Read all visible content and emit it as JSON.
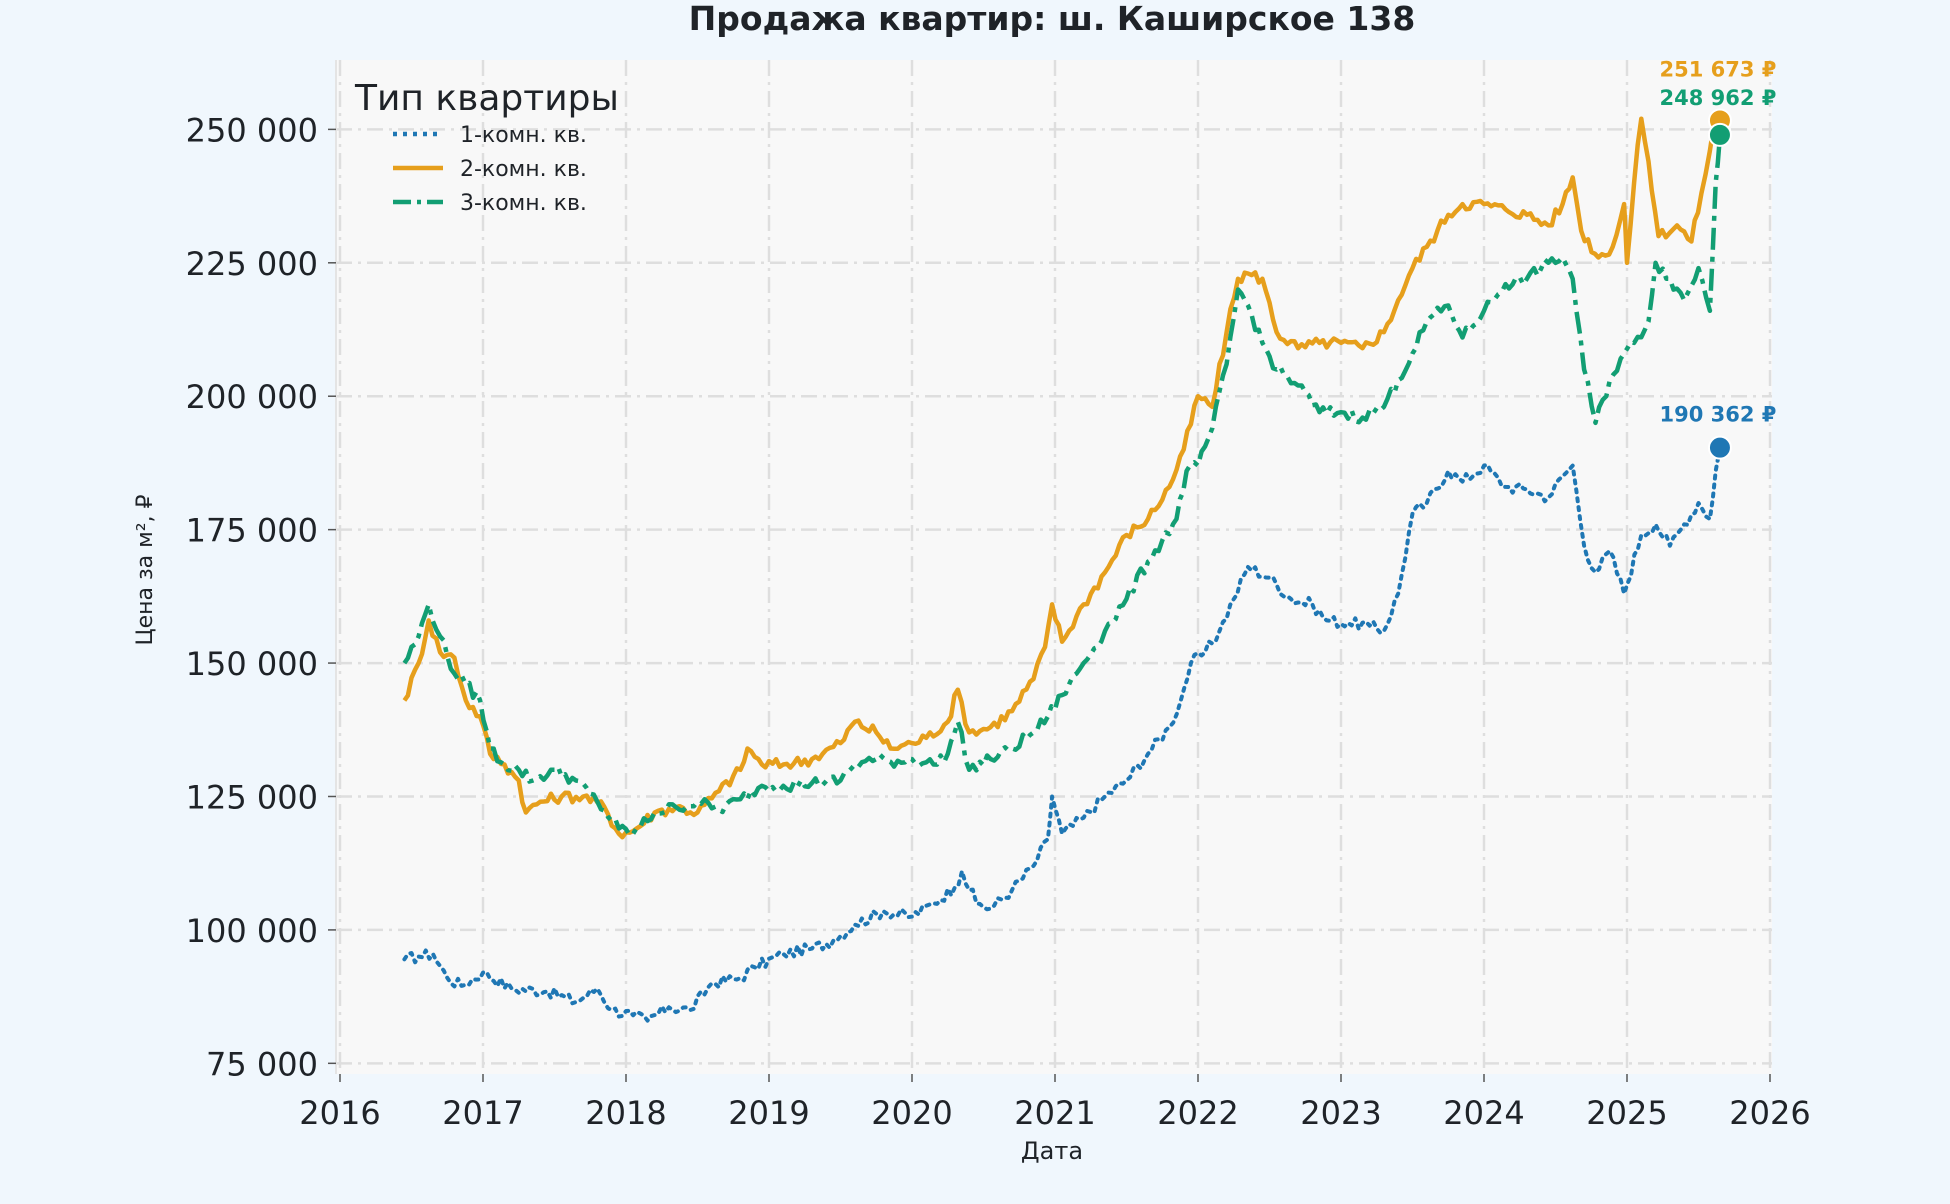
{
  "chart_data": {
    "type": "line",
    "title": "Продажа квартир: ш. Каширское 138",
    "xlabel": "Дата",
    "ylabel": "Цена за м², ₽",
    "legend_title": "Тип квартиры",
    "legend_position": "top-left",
    "grid": true,
    "x_ticks": [
      "2016",
      "2017",
      "2018",
      "2019",
      "2020",
      "2021",
      "2022",
      "2023",
      "2024",
      "2025",
      "2026"
    ],
    "y_ticks": [
      "75 000",
      "100 000",
      "125 000",
      "150 000",
      "175 000",
      "200 000",
      "225 000",
      "250 000"
    ],
    "xlim": [
      2016.0,
      2026.0
    ],
    "ylim": [
      73000,
      263000
    ],
    "series": [
      {
        "name": "1-комн. кв.",
        "color": "#1f77b4",
        "dash": "dotted",
        "end_label": "190 362 ₽",
        "end_value": 190362,
        "points": [
          [
            2016.45,
            94500
          ],
          [
            2016.55,
            95000
          ],
          [
            2016.65,
            95500
          ],
          [
            2016.75,
            91000
          ],
          [
            2016.85,
            89500
          ],
          [
            2017.0,
            92000
          ],
          [
            2017.2,
            89000
          ],
          [
            2017.45,
            88500
          ],
          [
            2017.65,
            86500
          ],
          [
            2017.8,
            89000
          ],
          [
            2017.9,
            85000
          ],
          [
            2018.05,
            84000
          ],
          [
            2018.15,
            83000
          ],
          [
            2018.3,
            85500
          ],
          [
            2018.45,
            85000
          ],
          [
            2018.6,
            90000
          ],
          [
            2018.8,
            91000
          ],
          [
            2018.9,
            93000
          ],
          [
            2019.1,
            95500
          ],
          [
            2019.3,
            96500
          ],
          [
            2019.45,
            98000
          ],
          [
            2019.6,
            101000
          ],
          [
            2019.8,
            103500
          ],
          [
            2020.0,
            102500
          ],
          [
            2020.15,
            105000
          ],
          [
            2020.3,
            108000
          ],
          [
            2020.35,
            111000
          ],
          [
            2020.45,
            105000
          ],
          [
            2020.55,
            104000
          ],
          [
            2020.7,
            107500
          ],
          [
            2020.85,
            112000
          ],
          [
            2020.95,
            117000
          ],
          [
            2020.98,
            125000
          ],
          [
            2021.05,
            118000
          ],
          [
            2021.2,
            121000
          ],
          [
            2021.35,
            125000
          ],
          [
            2021.5,
            128000
          ],
          [
            2021.65,
            133000
          ],
          [
            2021.8,
            138000
          ],
          [
            2021.88,
            143000
          ],
          [
            2021.95,
            150000
          ],
          [
            2022.05,
            152000
          ],
          [
            2022.15,
            156000
          ],
          [
            2022.25,
            162000
          ],
          [
            2022.35,
            168000
          ],
          [
            2022.5,
            166000
          ],
          [
            2022.65,
            162000
          ],
          [
            2022.8,
            161000
          ],
          [
            2022.9,
            158000
          ],
          [
            2023.05,
            157500
          ],
          [
            2023.2,
            157000
          ],
          [
            2023.3,
            156000
          ],
          [
            2023.4,
            163000
          ],
          [
            2023.5,
            178000
          ],
          [
            2023.6,
            180000
          ],
          [
            2023.75,
            186000
          ],
          [
            2023.85,
            184000
          ],
          [
            2024.0,
            187000
          ],
          [
            2024.15,
            183000
          ],
          [
            2024.3,
            182500
          ],
          [
            2024.45,
            181000
          ],
          [
            2024.55,
            185000
          ],
          [
            2024.62,
            187000
          ],
          [
            2024.7,
            172000
          ],
          [
            2024.78,
            167000
          ],
          [
            2024.88,
            171000
          ],
          [
            2024.98,
            163000
          ],
          [
            2025.1,
            174000
          ],
          [
            2025.2,
            176000
          ],
          [
            2025.3,
            172000
          ],
          [
            2025.4,
            176000
          ],
          [
            2025.5,
            180000
          ],
          [
            2025.58,
            177000
          ],
          [
            2025.62,
            186000
          ],
          [
            2025.65,
            190362
          ]
        ]
      },
      {
        "name": "2-комн. кв.",
        "color": "#e69f1c",
        "dash": "solid",
        "end_label": "251 673 ₽",
        "end_value": 251673,
        "points": [
          [
            2016.45,
            143000
          ],
          [
            2016.55,
            150000
          ],
          [
            2016.62,
            158000
          ],
          [
            2016.7,
            152000
          ],
          [
            2016.8,
            151000
          ],
          [
            2016.88,
            143000
          ],
          [
            2016.98,
            140000
          ],
          [
            2017.05,
            133000
          ],
          [
            2017.15,
            131000
          ],
          [
            2017.25,
            128000
          ],
          [
            2017.3,
            122000
          ],
          [
            2017.4,
            124000
          ],
          [
            2017.55,
            125000
          ],
          [
            2017.7,
            125000
          ],
          [
            2017.85,
            123000
          ],
          [
            2017.95,
            118000
          ],
          [
            2018.05,
            118500
          ],
          [
            2018.2,
            122000
          ],
          [
            2018.35,
            123000
          ],
          [
            2018.5,
            122000
          ],
          [
            2018.65,
            126000
          ],
          [
            2018.8,
            130000
          ],
          [
            2018.85,
            134000
          ],
          [
            2018.95,
            131000
          ],
          [
            2019.1,
            131000
          ],
          [
            2019.3,
            132000
          ],
          [
            2019.5,
            135000
          ],
          [
            2019.6,
            139000
          ],
          [
            2019.75,
            137000
          ],
          [
            2019.85,
            134000
          ],
          [
            2020.0,
            135000
          ],
          [
            2020.1,
            136000
          ],
          [
            2020.25,
            139000
          ],
          [
            2020.32,
            145000
          ],
          [
            2020.4,
            137000
          ],
          [
            2020.55,
            138000
          ],
          [
            2020.7,
            141000
          ],
          [
            2020.85,
            147000
          ],
          [
            2020.93,
            153000
          ],
          [
            2020.98,
            161000
          ],
          [
            2021.05,
            154000
          ],
          [
            2021.2,
            161000
          ],
          [
            2021.35,
            167000
          ],
          [
            2021.5,
            174000
          ],
          [
            2021.65,
            177000
          ],
          [
            2021.8,
            183000
          ],
          [
            2021.9,
            190000
          ],
          [
            2022.0,
            200000
          ],
          [
            2022.1,
            198000
          ],
          [
            2022.2,
            212000
          ],
          [
            2022.28,
            222000
          ],
          [
            2022.35,
            223000
          ],
          [
            2022.45,
            222000
          ],
          [
            2022.55,
            212000
          ],
          [
            2022.7,
            209000
          ],
          [
            2022.85,
            210000
          ],
          [
            2023.0,
            210000
          ],
          [
            2023.15,
            209000
          ],
          [
            2023.3,
            212000
          ],
          [
            2023.4,
            218000
          ],
          [
            2023.5,
            224000
          ],
          [
            2023.6,
            228000
          ],
          [
            2023.75,
            234000
          ],
          [
            2023.85,
            236000
          ],
          [
            2024.0,
            236000
          ],
          [
            2024.15,
            235000
          ],
          [
            2024.3,
            234000
          ],
          [
            2024.45,
            232000
          ],
          [
            2024.55,
            236000
          ],
          [
            2024.62,
            241000
          ],
          [
            2024.68,
            231000
          ],
          [
            2024.8,
            226000
          ],
          [
            2024.9,
            228000
          ],
          [
            2024.98,
            236000
          ],
          [
            2025.0,
            225000
          ],
          [
            2025.05,
            240000
          ],
          [
            2025.1,
            252000
          ],
          [
            2025.15,
            244000
          ],
          [
            2025.22,
            230000
          ],
          [
            2025.35,
            232000
          ],
          [
            2025.45,
            229000
          ],
          [
            2025.52,
            238000
          ],
          [
            2025.58,
            246000
          ],
          [
            2025.62,
            252000
          ],
          [
            2025.65,
            251673
          ]
        ]
      },
      {
        "name": "3-комн. кв.",
        "color": "#129e73",
        "dash": "dashdot",
        "end_label": "248 962 ₽",
        "end_value": 248962,
        "points": [
          [
            2016.45,
            150000
          ],
          [
            2016.55,
            155000
          ],
          [
            2016.62,
            161000
          ],
          [
            2016.7,
            155000
          ],
          [
            2016.8,
            148000
          ],
          [
            2016.88,
            146000
          ],
          [
            2016.98,
            143000
          ],
          [
            2017.05,
            134000
          ],
          [
            2017.15,
            131000
          ],
          [
            2017.25,
            130000
          ],
          [
            2017.35,
            128000
          ],
          [
            2017.5,
            130000
          ],
          [
            2017.65,
            128000
          ],
          [
            2017.8,
            124000
          ],
          [
            2017.95,
            119000
          ],
          [
            2018.05,
            118000
          ],
          [
            2018.2,
            122000
          ],
          [
            2018.35,
            123000
          ],
          [
            2018.5,
            124000
          ],
          [
            2018.65,
            122500
          ],
          [
            2018.8,
            124500
          ],
          [
            2018.95,
            127000
          ],
          [
            2019.1,
            127000
          ],
          [
            2019.3,
            127500
          ],
          [
            2019.5,
            128000
          ],
          [
            2019.6,
            131000
          ],
          [
            2019.75,
            132000
          ],
          [
            2019.85,
            131500
          ],
          [
            2020.0,
            132000
          ],
          [
            2020.15,
            131000
          ],
          [
            2020.25,
            133000
          ],
          [
            2020.32,
            139000
          ],
          [
            2020.4,
            130000
          ],
          [
            2020.55,
            132000
          ],
          [
            2020.7,
            134000
          ],
          [
            2020.85,
            137000
          ],
          [
            2020.95,
            140000
          ],
          [
            2021.05,
            144000
          ],
          [
            2021.2,
            150000
          ],
          [
            2021.35,
            156000
          ],
          [
            2021.5,
            162000
          ],
          [
            2021.65,
            169000
          ],
          [
            2021.75,
            173000
          ],
          [
            2021.85,
            177000
          ],
          [
            2021.92,
            186000
          ],
          [
            2022.0,
            187000
          ],
          [
            2022.1,
            194000
          ],
          [
            2022.2,
            206000
          ],
          [
            2022.28,
            220000
          ],
          [
            2022.35,
            217000
          ],
          [
            2022.45,
            210000
          ],
          [
            2022.55,
            205000
          ],
          [
            2022.7,
            202000
          ],
          [
            2022.85,
            197000
          ],
          [
            2023.0,
            197000
          ],
          [
            2023.15,
            196000
          ],
          [
            2023.3,
            198000
          ],
          [
            2023.4,
            203000
          ],
          [
            2023.5,
            208000
          ],
          [
            2023.6,
            214000
          ],
          [
            2023.75,
            217000
          ],
          [
            2023.85,
            211000
          ],
          [
            2024.0,
            216000
          ],
          [
            2024.15,
            221000
          ],
          [
            2024.3,
            222000
          ],
          [
            2024.45,
            225000
          ],
          [
            2024.55,
            226000
          ],
          [
            2024.62,
            222000
          ],
          [
            2024.7,
            205000
          ],
          [
            2024.78,
            195000
          ],
          [
            2024.88,
            203000
          ],
          [
            2024.98,
            208000
          ],
          [
            2025.05,
            210000
          ],
          [
            2025.15,
            214000
          ],
          [
            2025.2,
            225000
          ],
          [
            2025.3,
            222000
          ],
          [
            2025.4,
            218000
          ],
          [
            2025.5,
            224000
          ],
          [
            2025.58,
            216000
          ],
          [
            2025.62,
            240000
          ],
          [
            2025.65,
            248962
          ]
        ]
      }
    ]
  }
}
